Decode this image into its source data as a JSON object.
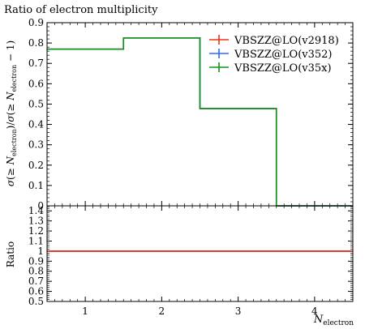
{
  "chart_data": [
    {
      "type": "line",
      "step": true,
      "title": "Ratio of electron multiplicity",
      "ylabel": "σ(≥ N_electron)/σ(≥ N_electron − 1)",
      "xlabel": "",
      "x_bin_edges": [
        0.5,
        1.5,
        2.5,
        3.5,
        4.5
      ],
      "xlim": [
        0.5,
        4.5
      ],
      "ylim": [
        0,
        0.9
      ],
      "yticks": [
        "0",
        "0.1",
        "0.2",
        "0.3",
        "0.4",
        "0.5",
        "0.6",
        "0.7",
        "0.8",
        "0.9"
      ],
      "legend_position": "top-right",
      "series": [
        {
          "name": "VBSZZ@LO(v2918)",
          "color": "#ee3311",
          "values": [
            0.77,
            0.825,
            0.478,
            0.0
          ]
        },
        {
          "name": "VBSZZ@LO(v352)",
          "color": "#3366ff",
          "values": [
            0.77,
            0.825,
            0.478,
            0.0
          ]
        },
        {
          "name": "VBSZZ@LO(v35x)",
          "color": "#109618",
          "values": [
            0.77,
            0.825,
            0.478,
            0.0
          ]
        }
      ]
    },
    {
      "type": "line",
      "step": true,
      "ylabel": "Ratio",
      "xlabel": "N_electron",
      "x_bin_edges": [
        0.5,
        1.5,
        2.5,
        3.5,
        4.5
      ],
      "xlim": [
        0.5,
        4.5
      ],
      "ylim": [
        0.5,
        1.45
      ],
      "xticks": [
        "1",
        "2",
        "3",
        "4"
      ],
      "yticks": [
        "0.5",
        "0.6",
        "0.7",
        "0.8",
        "0.9",
        "1",
        "1.1",
        "1.2",
        "1.3",
        "1.4"
      ],
      "series": [
        {
          "name": "VBSZZ@LO(v2918)",
          "color": "#ee3311",
          "values": [
            1,
            1,
            1,
            1
          ]
        },
        {
          "name": "VBSZZ@LO(v352)",
          "color": "#3366ff",
          "values": [
            1,
            1,
            1,
            1
          ]
        },
        {
          "name": "VBSZZ@LO(v35x)",
          "color": "#109618",
          "values": [
            1,
            1,
            1,
            1
          ]
        }
      ]
    }
  ]
}
